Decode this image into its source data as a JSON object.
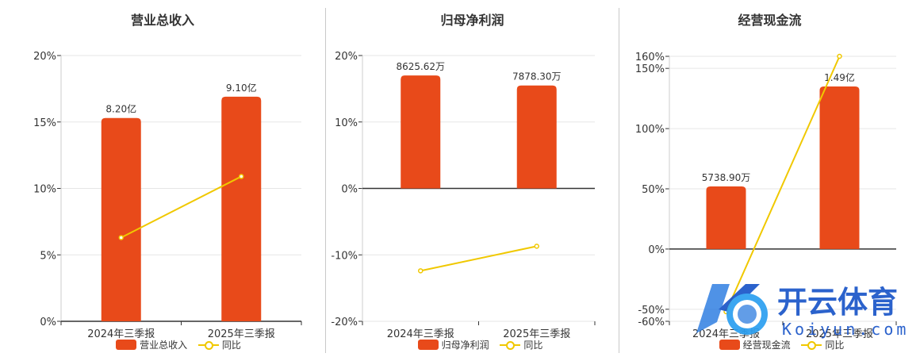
{
  "colors": {
    "bar": "#e84a1a",
    "line": "#f0c800",
    "grid": "#e6e6e6",
    "axis": "#333333"
  },
  "watermark": {
    "text": "开云体育",
    "domain": "Koiyun.com"
  },
  "chart_data": [
    {
      "type": "bar",
      "title": "营业总收入",
      "categories": [
        "2024年三季报",
        "2025年三季报"
      ],
      "series": [
        {
          "name": "营业总收入",
          "kind": "bar",
          "values": [
            15.3,
            16.9
          ],
          "labels": [
            "8.20亿",
            "9.10亿"
          ]
        },
        {
          "name": "同比",
          "kind": "line",
          "values": [
            6.3,
            10.9
          ]
        }
      ],
      "yticks": [
        "20%",
        "15%",
        "10%",
        "5%",
        "0%"
      ],
      "ylim": [
        0,
        20
      ],
      "legend": "bottom"
    },
    {
      "type": "bar",
      "title": "归母净利润",
      "categories": [
        "2024年三季报",
        "2025年三季报"
      ],
      "series": [
        {
          "name": "归母净利润",
          "kind": "bar",
          "values": [
            17.0,
            15.5
          ],
          "labels": [
            "8625.62万",
            "7878.30万"
          ]
        },
        {
          "name": "同比",
          "kind": "line",
          "values": [
            -12.4,
            -8.7
          ]
        }
      ],
      "yticks": [
        "20%",
        "10%",
        "0%",
        "-10%",
        "-20%"
      ],
      "ylim": [
        -20,
        20
      ],
      "legend": "bottom"
    },
    {
      "type": "bar",
      "title": "经营现金流",
      "categories": [
        "2024年三季报",
        "2025年三季报"
      ],
      "series": [
        {
          "name": "经营现金流",
          "kind": "bar",
          "values": [
            52,
            135
          ],
          "labels": [
            "5738.90万",
            "1.49亿"
          ]
        },
        {
          "name": "同比",
          "kind": "line",
          "values": [
            -52,
            160
          ]
        }
      ],
      "yticks": [
        "160%",
        "150%",
        "100%",
        "50%",
        "0%",
        "-50%",
        "-60%"
      ],
      "ylim": [
        -60,
        160
      ],
      "legend": "bottom"
    }
  ]
}
